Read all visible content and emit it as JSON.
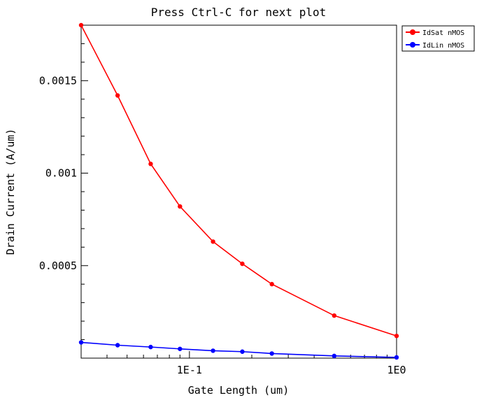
{
  "chart_data": {
    "type": "line",
    "title": "Press Ctrl-C for next plot",
    "xlabel": "Gate Length (um)",
    "ylabel": "Drain Current (A/um)",
    "x_scale": "log",
    "xlim": [
      0.03,
      1.0
    ],
    "ylim": [
      0.0,
      0.0018
    ],
    "x_ticks": [
      {
        "value": 0.1,
        "label": "1E-1"
      },
      {
        "value": 1.0,
        "label": "1E0"
      }
    ],
    "y_ticks": [
      {
        "value": 0.0005,
        "label": "0.0005"
      },
      {
        "value": 0.001,
        "label": "0.001"
      },
      {
        "value": 0.0015,
        "label": "0.0015"
      }
    ],
    "grid": false,
    "legend_position": "outside-top-right",
    "series": [
      {
        "name": "IdSat nMOS",
        "color": "#ff0000",
        "x": [
          0.03,
          0.045,
          0.065,
          0.09,
          0.13,
          0.18,
          0.25,
          0.5,
          1.0
        ],
        "y": [
          0.0018,
          0.00142,
          0.00105,
          0.00082,
          0.00063,
          0.00051,
          0.0004,
          0.00023,
          0.00012
        ]
      },
      {
        "name": "IdLin nMOS",
        "color": "#0000ff",
        "x": [
          0.03,
          0.045,
          0.065,
          0.09,
          0.13,
          0.18,
          0.25,
          0.5,
          1.0
        ],
        "y": [
          8.5e-05,
          7e-05,
          6e-05,
          5e-05,
          4e-05,
          3.5e-05,
          2.5e-05,
          1.2e-05,
          4e-06
        ]
      }
    ]
  }
}
